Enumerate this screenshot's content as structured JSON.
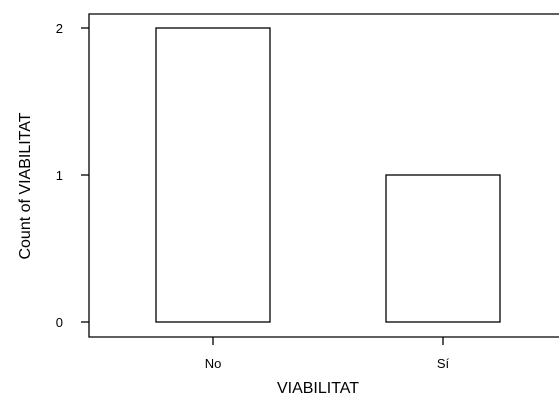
{
  "chart_data": {
    "type": "bar",
    "categories": [
      "No",
      "Sí"
    ],
    "values": [
      2,
      1
    ],
    "xlabel": "VIABILITAT",
    "ylabel": "Count of VIABILITAT",
    "ylim": [
      0,
      2
    ],
    "yticks": [
      "0",
      "1",
      "2"
    ],
    "grid": false,
    "legend": "none",
    "colors": {
      "bar_fill": "#ffffff",
      "bar_stroke": "#000000",
      "axis": "#000000"
    }
  }
}
